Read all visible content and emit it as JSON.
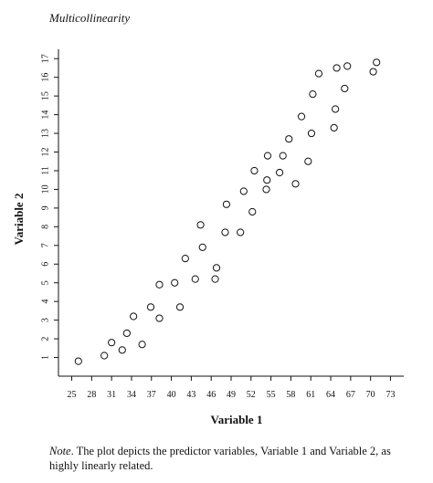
{
  "chart_data": {
    "type": "scatter",
    "title": "Multicollinearity",
    "xlabel": "Variable 1",
    "ylabel": "Variable 2",
    "xlim": [
      23,
      75
    ],
    "ylim": [
      0,
      17.5
    ],
    "xticks": [
      25,
      28,
      31,
      34,
      37,
      40,
      43,
      46,
      49,
      52,
      55,
      58,
      61,
      64,
      67,
      70,
      73
    ],
    "yticks": [
      1,
      2,
      3,
      4,
      5,
      6,
      7,
      8,
      9,
      10,
      11,
      12,
      13,
      14,
      15,
      16,
      17
    ],
    "grid": false,
    "legend": "none",
    "marker": "open-circle",
    "series": [
      {
        "points": [
          [
            26.0,
            0.8
          ],
          [
            29.9,
            1.1
          ],
          [
            31.0,
            1.8
          ],
          [
            32.6,
            1.4
          ],
          [
            33.3,
            2.3
          ],
          [
            34.3,
            3.2
          ],
          [
            35.6,
            1.7
          ],
          [
            36.9,
            3.7
          ],
          [
            38.2,
            3.1
          ],
          [
            38.2,
            4.9
          ],
          [
            40.5,
            5.0
          ],
          [
            41.3,
            3.7
          ],
          [
            42.1,
            6.3
          ],
          [
            43.6,
            5.2
          ],
          [
            44.4,
            8.1
          ],
          [
            44.7,
            6.9
          ],
          [
            46.6,
            5.2
          ],
          [
            46.8,
            5.8
          ],
          [
            48.1,
            7.7
          ],
          [
            48.3,
            9.2
          ],
          [
            50.4,
            7.7
          ],
          [
            50.9,
            9.9
          ],
          [
            52.2,
            8.8
          ],
          [
            52.5,
            11.0
          ],
          [
            54.3,
            10.0
          ],
          [
            54.4,
            10.5
          ],
          [
            54.5,
            11.8
          ],
          [
            56.3,
            10.9
          ],
          [
            56.8,
            11.8
          ],
          [
            57.7,
            12.7
          ],
          [
            58.7,
            10.3
          ],
          [
            59.6,
            13.9
          ],
          [
            60.6,
            11.5
          ],
          [
            61.1,
            13.0
          ],
          [
            61.3,
            15.1
          ],
          [
            62.2,
            16.2
          ],
          [
            64.5,
            13.3
          ],
          [
            64.7,
            14.3
          ],
          [
            64.9,
            16.5
          ],
          [
            66.1,
            15.4
          ],
          [
            66.5,
            16.6
          ],
          [
            70.4,
            16.3
          ],
          [
            70.9,
            16.8
          ]
        ]
      }
    ]
  },
  "note": {
    "lead": "Note",
    "text": ". The plot depicts the predictor variables, Variable 1 and Variable 2, as highly linearly related."
  }
}
